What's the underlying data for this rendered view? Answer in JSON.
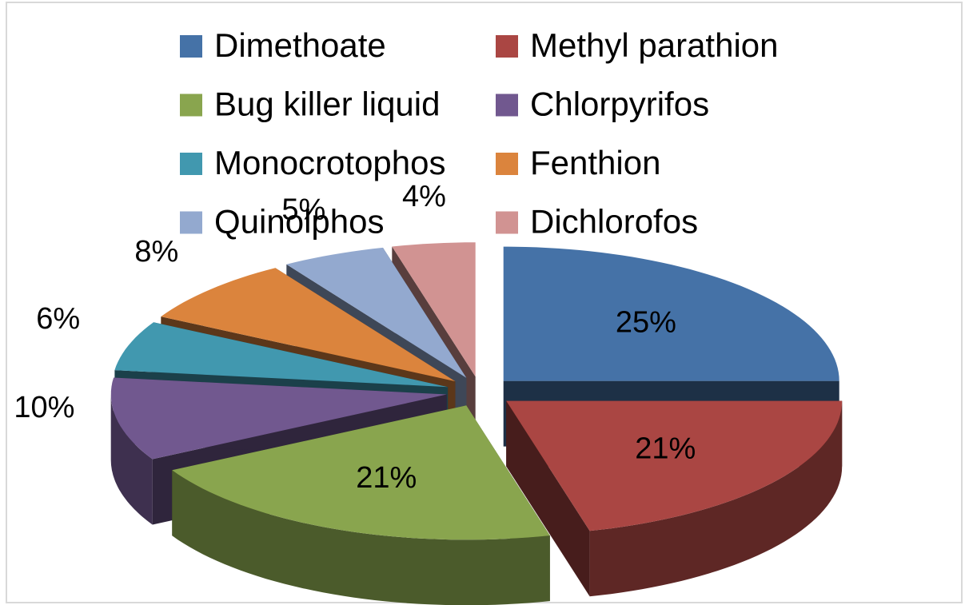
{
  "chart_data": {
    "type": "pie3d",
    "categories": [
      "Dimethoate",
      "Methyl parathion",
      "Bug killer liquid",
      "Chlorpyrifos",
      "Monocrotophos",
      "Fenthion",
      "Quinolphos",
      "Dichlorofos"
    ],
    "values": [
      25,
      21,
      21,
      10,
      6,
      8,
      5,
      4
    ],
    "value_labels": [
      "25%",
      "21%",
      "21%",
      "10%",
      "6%",
      "8%",
      "5%",
      "4%"
    ],
    "colors": [
      "#4572a7",
      "#aa4643",
      "#89a54e",
      "#71588f",
      "#4198af",
      "#db843d",
      "#93a9cf",
      "#d19392"
    ],
    "legend": "top"
  }
}
